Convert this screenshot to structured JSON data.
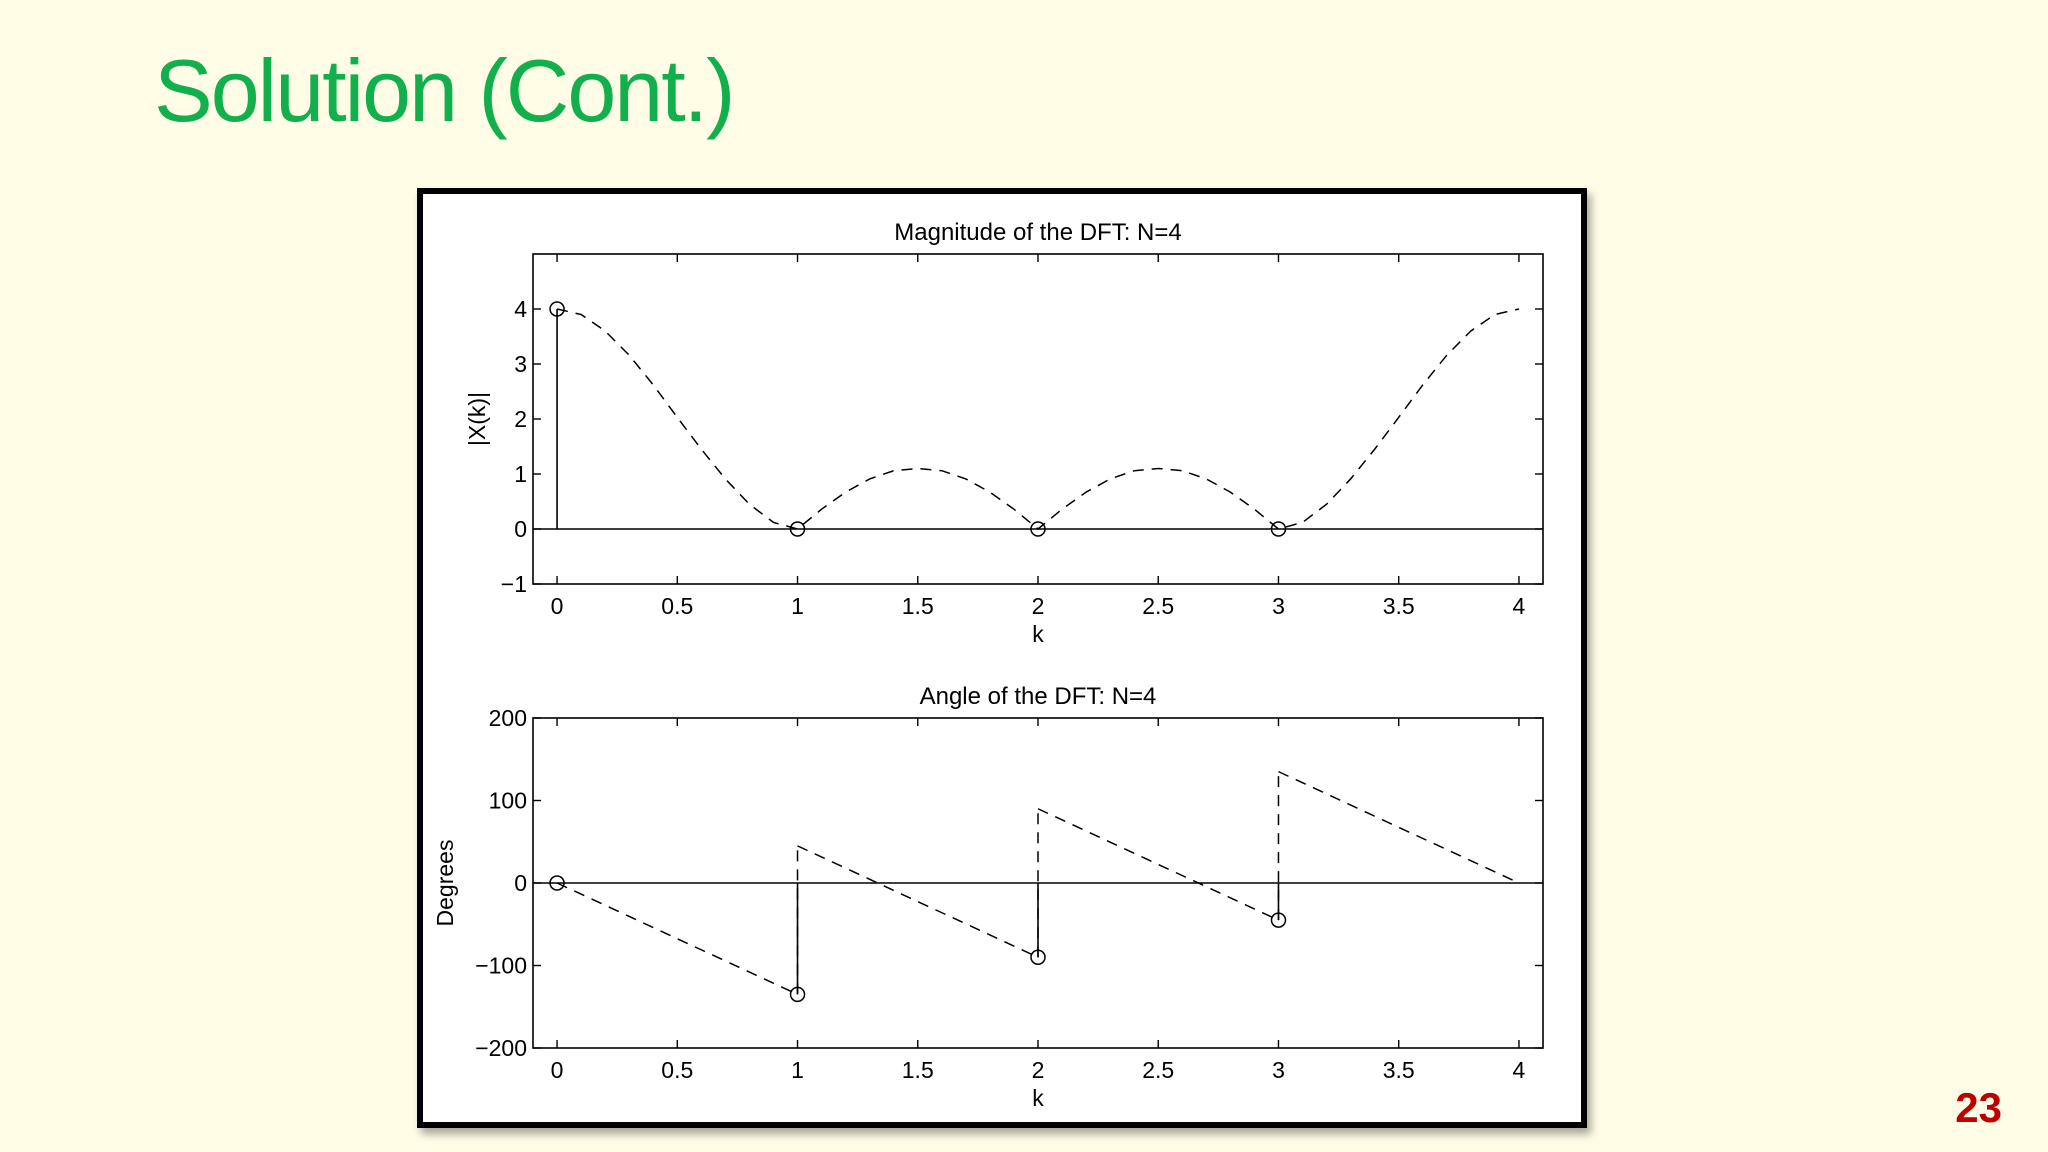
{
  "slide": {
    "title": "Solution (Cont.)",
    "page_number": "23",
    "title_color": "#12b04c",
    "page_number_color": "#c00000"
  },
  "chart_data": [
    {
      "type": "stem",
      "title": "Magnitude of the DFT: N=4",
      "xlabel": "k",
      "ylabel": "|X(k)|",
      "xlim": [
        -0.1,
        4.1
      ],
      "ylim": [
        -1,
        5
      ],
      "xticks": [
        0,
        0.5,
        1,
        1.5,
        2,
        2.5,
        3,
        3.5,
        4
      ],
      "xtick_labels": [
        "0",
        "0.5",
        "1",
        "1.5",
        "2",
        "2.5",
        "3",
        "3.5",
        "4"
      ],
      "yticks": [
        -1,
        0,
        1,
        2,
        3,
        4
      ],
      "ytick_labels": [
        "−1",
        "0",
        "1",
        "2",
        "3",
        "4"
      ],
      "stems": {
        "x": [
          0,
          1,
          2,
          3
        ],
        "y": [
          4,
          0,
          0,
          0
        ],
        "marker": "circle"
      },
      "dashed_curve": {
        "x": [
          0,
          0.1,
          0.2,
          0.3,
          0.4,
          0.5,
          0.6,
          0.7,
          0.8,
          0.9,
          1.0,
          1.1,
          1.2,
          1.3,
          1.4,
          1.5,
          1.6,
          1.7,
          1.8,
          1.9,
          2.0,
          2.1,
          2.2,
          2.3,
          2.4,
          2.5,
          2.6,
          2.7,
          2.8,
          2.9,
          3.0,
          3.1,
          3.2,
          3.3,
          3.4,
          3.5,
          3.6,
          3.7,
          3.8,
          3.9,
          4.0
        ],
        "y": [
          4.0,
          3.9,
          3.6,
          3.16,
          2.62,
          2.03,
          1.45,
          0.91,
          0.45,
          0.12,
          0.0,
          0.36,
          0.67,
          0.91,
          1.06,
          1.1,
          1.06,
          0.91,
          0.67,
          0.36,
          0.0,
          0.36,
          0.67,
          0.91,
          1.06,
          1.1,
          1.06,
          0.91,
          0.67,
          0.36,
          0.0,
          0.12,
          0.45,
          0.91,
          1.45,
          2.03,
          2.62,
          3.16,
          3.6,
          3.9,
          4.0
        ]
      },
      "zero_line": true,
      "grid": false,
      "color": "#000000"
    },
    {
      "type": "stem",
      "title": "Angle of the DFT: N=4",
      "xlabel": "k",
      "ylabel": "Degrees",
      "xlim": [
        -0.1,
        4.1
      ],
      "ylim": [
        -200,
        200
      ],
      "xticks": [
        0,
        0.5,
        1,
        1.5,
        2,
        2.5,
        3,
        3.5,
        4
      ],
      "xtick_labels": [
        "0",
        "0.5",
        "1",
        "1.5",
        "2",
        "2.5",
        "3",
        "3.5",
        "4"
      ],
      "yticks": [
        -200,
        -100,
        0,
        100,
        200
      ],
      "ytick_labels": [
        "−200",
        "−100",
        "0",
        "100",
        "200"
      ],
      "stems": {
        "x": [
          0,
          1,
          2,
          3
        ],
        "y": [
          0,
          -135,
          -90,
          -45
        ],
        "marker": "circle"
      },
      "dashed_segments": [
        {
          "x": [
            0,
            1
          ],
          "y": [
            0,
            -135
          ]
        },
        {
          "x": [
            1,
            1
          ],
          "y": [
            -135,
            45
          ]
        },
        {
          "x": [
            1,
            2
          ],
          "y": [
            45,
            -90
          ]
        },
        {
          "x": [
            2,
            2
          ],
          "y": [
            -90,
            90
          ]
        },
        {
          "x": [
            2,
            3
          ],
          "y": [
            90,
            -45
          ]
        },
        {
          "x": [
            3,
            3
          ],
          "y": [
            -45,
            135
          ]
        },
        {
          "x": [
            3,
            4
          ],
          "y": [
            135,
            0
          ]
        }
      ],
      "zero_line": true,
      "grid": false,
      "color": "#000000"
    }
  ]
}
